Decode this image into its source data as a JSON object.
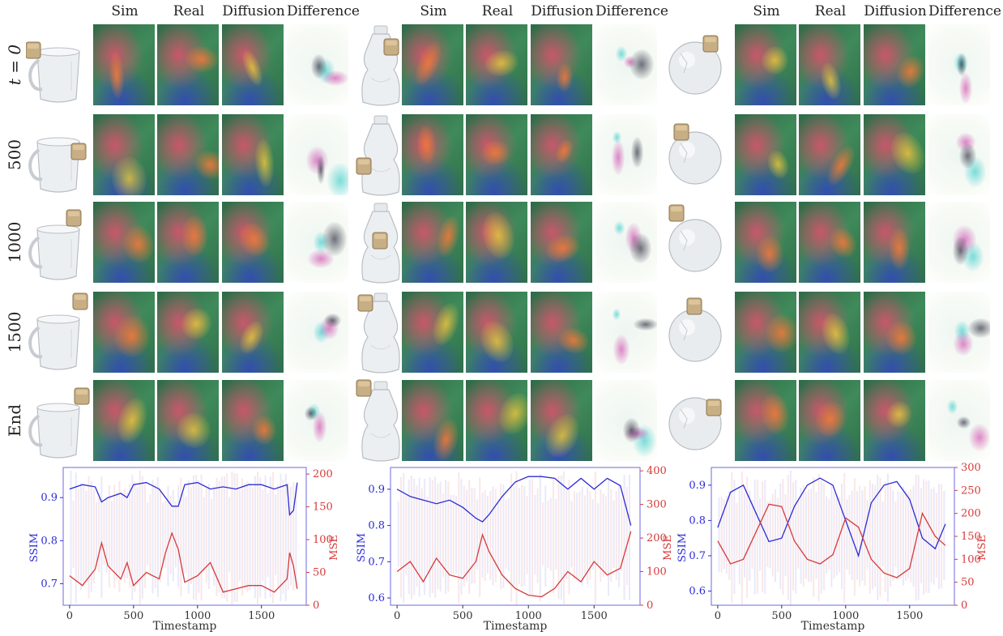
{
  "column_headers": [
    "Sim",
    "Real",
    "Diffusion",
    "Difference"
  ],
  "row_labels": [
    "t = 0",
    "500",
    "1000",
    "1500",
    "End"
  ],
  "objects": [
    "mug-object",
    "bottle-object",
    "ball-object"
  ],
  "colors": {
    "ssim": "#2b2bd6",
    "mse": "#d63a3a",
    "axis_frame": "#6d6ae0"
  },
  "chart_data": [
    {
      "type": "line",
      "xlabel": "Timestamp",
      "ylabel": "SSIM",
      "y2label": "MSE",
      "xlim": [
        -50,
        1850
      ],
      "ylim": [
        0.65,
        0.97
      ],
      "y2lim": [
        0,
        210
      ],
      "xticks": [
        0,
        500,
        1000,
        1500
      ],
      "yticks": [
        0.7,
        0.8,
        0.9
      ],
      "y2ticks": [
        0,
        50,
        100,
        150,
        200
      ],
      "x": [
        0,
        100,
        200,
        250,
        300,
        400,
        450,
        500,
        600,
        700,
        750,
        800,
        850,
        900,
        1000,
        1100,
        1200,
        1300,
        1400,
        1500,
        1600,
        1700,
        1720,
        1750,
        1780
      ],
      "series": [
        {
          "name": "SSIM",
          "values": [
            0.92,
            0.93,
            0.925,
            0.89,
            0.9,
            0.91,
            0.9,
            0.93,
            0.935,
            0.92,
            0.9,
            0.88,
            0.88,
            0.93,
            0.935,
            0.92,
            0.925,
            0.92,
            0.93,
            0.93,
            0.92,
            0.93,
            0.86,
            0.87,
            0.935
          ]
        },
        {
          "name": "MSE",
          "values": [
            45,
            30,
            55,
            95,
            60,
            40,
            65,
            30,
            50,
            40,
            80,
            110,
            85,
            35,
            45,
            65,
            20,
            25,
            30,
            30,
            20,
            40,
            80,
            60,
            25
          ]
        }
      ]
    },
    {
      "type": "line",
      "xlabel": "Timestamp",
      "ylabel": "SSIM",
      "y2label": "MSE",
      "xlim": [
        -50,
        1850
      ],
      "ylim": [
        0.58,
        0.96
      ],
      "y2lim": [
        0,
        410
      ],
      "xticks": [
        0,
        500,
        1000,
        1500
      ],
      "yticks": [
        0.6,
        0.7,
        0.8,
        0.9
      ],
      "y2ticks": [
        0,
        100,
        200,
        300,
        400
      ],
      "x": [
        0,
        100,
        200,
        300,
        400,
        500,
        600,
        650,
        700,
        800,
        900,
        1000,
        1100,
        1200,
        1300,
        1400,
        1500,
        1600,
        1700,
        1780
      ],
      "series": [
        {
          "name": "SSIM",
          "values": [
            0.9,
            0.88,
            0.87,
            0.86,
            0.87,
            0.85,
            0.82,
            0.81,
            0.83,
            0.88,
            0.92,
            0.935,
            0.935,
            0.93,
            0.9,
            0.93,
            0.9,
            0.93,
            0.91,
            0.8
          ]
        },
        {
          "name": "MSE",
          "values": [
            100,
            130,
            70,
            140,
            90,
            80,
            130,
            210,
            160,
            90,
            50,
            30,
            25,
            50,
            100,
            70,
            130,
            90,
            110,
            220
          ]
        }
      ]
    },
    {
      "type": "line",
      "xlabel": "Timestamp",
      "ylabel": "SSIM",
      "y2label": "MSE",
      "xlim": [
        -50,
        1850
      ],
      "ylim": [
        0.56,
        0.95
      ],
      "y2lim": [
        0,
        300
      ],
      "xticks": [
        0,
        500,
        1000,
        1500
      ],
      "yticks": [
        0.6,
        0.7,
        0.8,
        0.9
      ],
      "y2ticks": [
        0,
        50,
        100,
        150,
        200,
        250,
        300
      ],
      "x": [
        0,
        100,
        200,
        300,
        400,
        500,
        600,
        700,
        800,
        900,
        1000,
        1100,
        1200,
        1300,
        1400,
        1500,
        1600,
        1700,
        1780
      ],
      "series": [
        {
          "name": "SSIM",
          "values": [
            0.78,
            0.88,
            0.9,
            0.82,
            0.74,
            0.75,
            0.84,
            0.9,
            0.92,
            0.9,
            0.8,
            0.7,
            0.85,
            0.9,
            0.91,
            0.86,
            0.75,
            0.72,
            0.79
          ]
        },
        {
          "name": "MSE",
          "values": [
            140,
            90,
            100,
            160,
            220,
            215,
            140,
            100,
            90,
            110,
            190,
            170,
            100,
            70,
            60,
            80,
            200,
            150,
            130
          ]
        }
      ]
    }
  ]
}
